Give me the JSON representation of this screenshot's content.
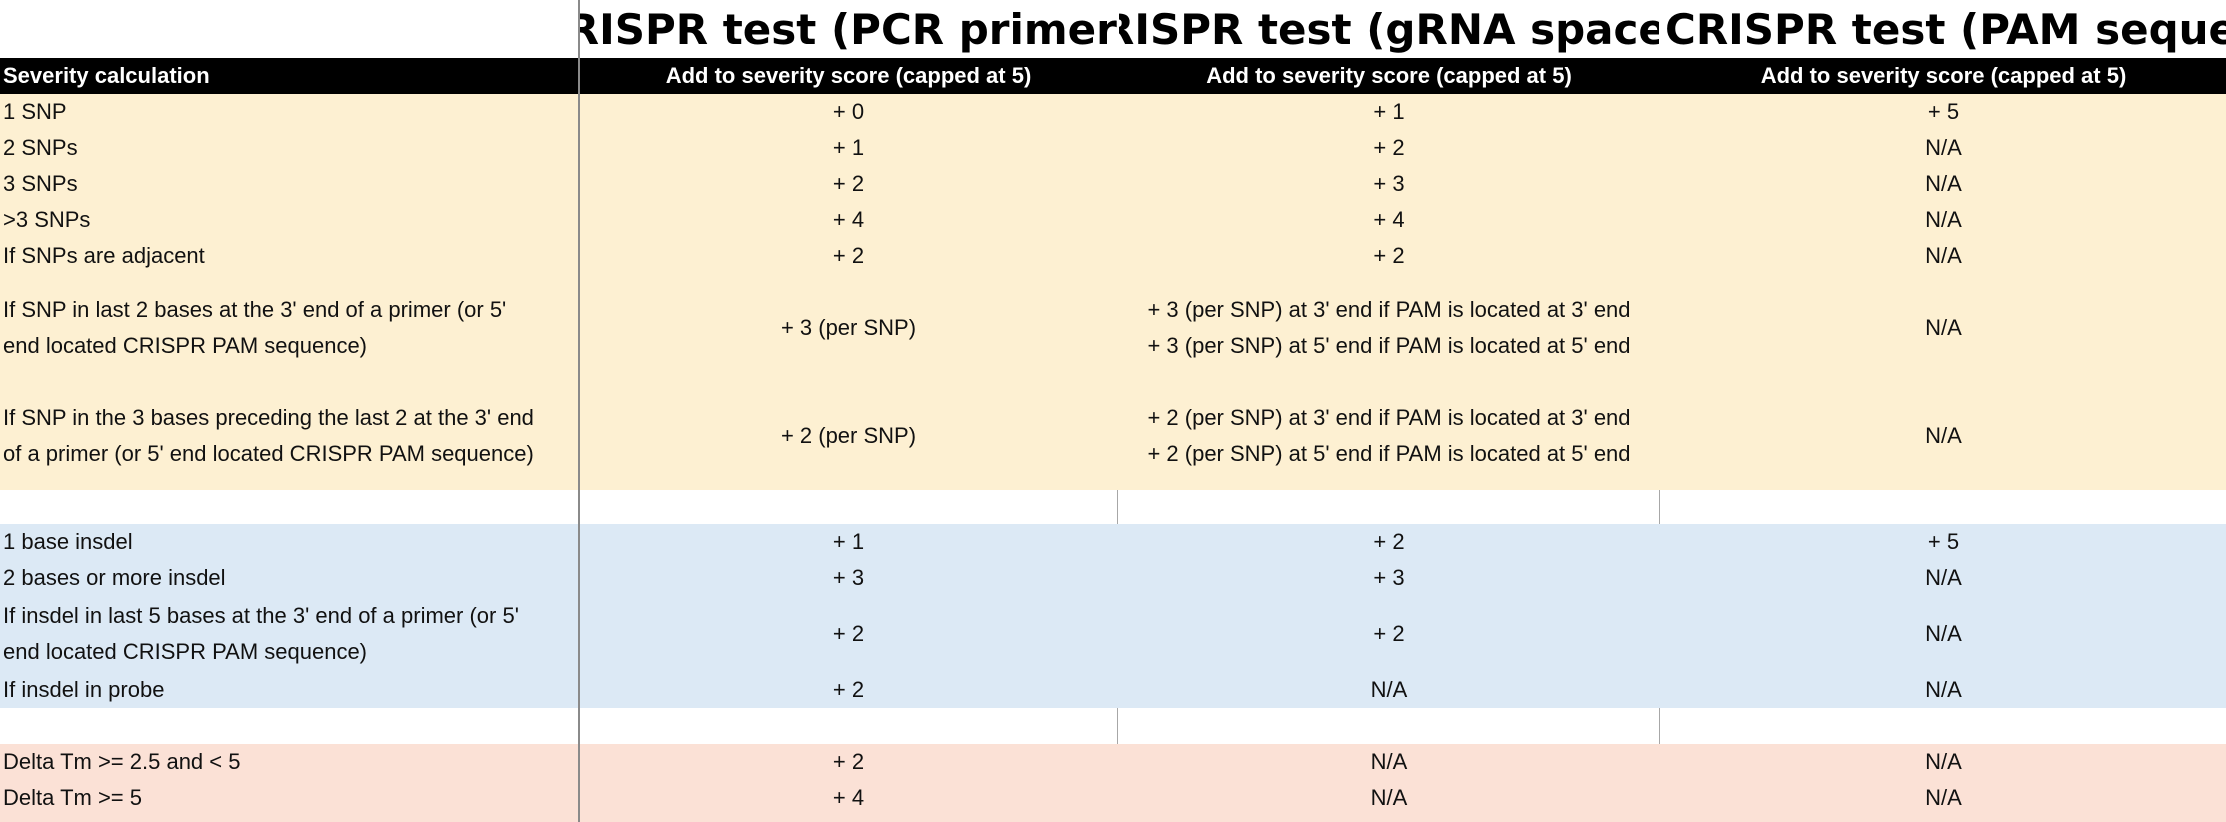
{
  "titles": {
    "col1": "CRISPR test (PCR primers)",
    "col2": "CRISPR test (gRNA spacer)",
    "col3": "CRISPR test (PAM sequence)"
  },
  "header": {
    "label": "Severity calculation",
    "col1": "Add to severity score (capped at 5)",
    "col2": "Add to severity score (capped at 5)",
    "col3": "Add to severity score (capped at 5)"
  },
  "snp_rows": [
    {
      "label": "1 SNP",
      "c1": "+ 0",
      "c2": "+ 1",
      "c3": "+ 5"
    },
    {
      "label": "2 SNPs",
      "c1": "+ 1",
      "c2": "+ 2",
      "c3": "N/A"
    },
    {
      "label": "3 SNPs",
      "c1": "+ 2",
      "c2": "+ 3",
      "c3": "N/A"
    },
    {
      "label": ">3 SNPs",
      "c1": "+ 4",
      "c2": "+ 4",
      "c3": "N/A"
    },
    {
      "label": "If SNPs are adjacent",
      "c1": "+ 2",
      "c2": "+ 2",
      "c3": "N/A"
    }
  ],
  "snp_multi": [
    {
      "label_1": "If SNP in last 2 bases at the 3' end of a primer (or 5'",
      "label_2": "end located CRISPR PAM sequence)",
      "c1": "+ 3 (per SNP)",
      "c2_1": "+ 3 (per SNP) at 3' end if PAM is located at 3' end",
      "c2_2": "+ 3 (per SNP) at 5' end if PAM is located at 5' end",
      "c3": "N/A"
    },
    {
      "label_1": "If SNP in the 3 bases preceding the last 2 at the 3' end",
      "label_2": "of a primer (or 5' end located CRISPR PAM sequence)",
      "c1": "+ 2 (per SNP)",
      "c2_1": "+ 2 (per SNP) at 3' end if PAM is located at 3' end",
      "c2_2": "+ 2 (per SNP) at 5' end if PAM is located at 5' end",
      "c3": "N/A"
    }
  ],
  "insdel_rows": [
    {
      "label": "1 base insdel",
      "c1": "+ 1",
      "c2": "+ 2",
      "c3": "+ 5"
    },
    {
      "label": "2 bases or more insdel",
      "c1": "+ 3",
      "c2": "+ 3",
      "c3": "N/A"
    }
  ],
  "insdel_multi": {
    "label_1": "If insdel in last 5 bases at the 3' end of a primer (or 5'",
    "label_2": "end located CRISPR PAM sequence)",
    "c1": "+ 2",
    "c2": "+ 2",
    "c3": "N/A"
  },
  "insdel_probe": {
    "label": "If insdel in probe",
    "c1": "+ 2",
    "c2": "N/A",
    "c3": "N/A"
  },
  "tm_rows": [
    {
      "label": "Delta Tm >= 2.5 and < 5",
      "c1": "+ 2",
      "c2": "N/A",
      "c3": "N/A"
    },
    {
      "label": "Delta Tm >= 5",
      "c1": "+ 4",
      "c2": "N/A",
      "c3": "N/A"
    }
  ],
  "colors": {
    "snp_band": "#fdf0d2",
    "insdel_band": "#dce9f5",
    "tm_band": "#fbe1d6",
    "header_bg": "#000000"
  }
}
